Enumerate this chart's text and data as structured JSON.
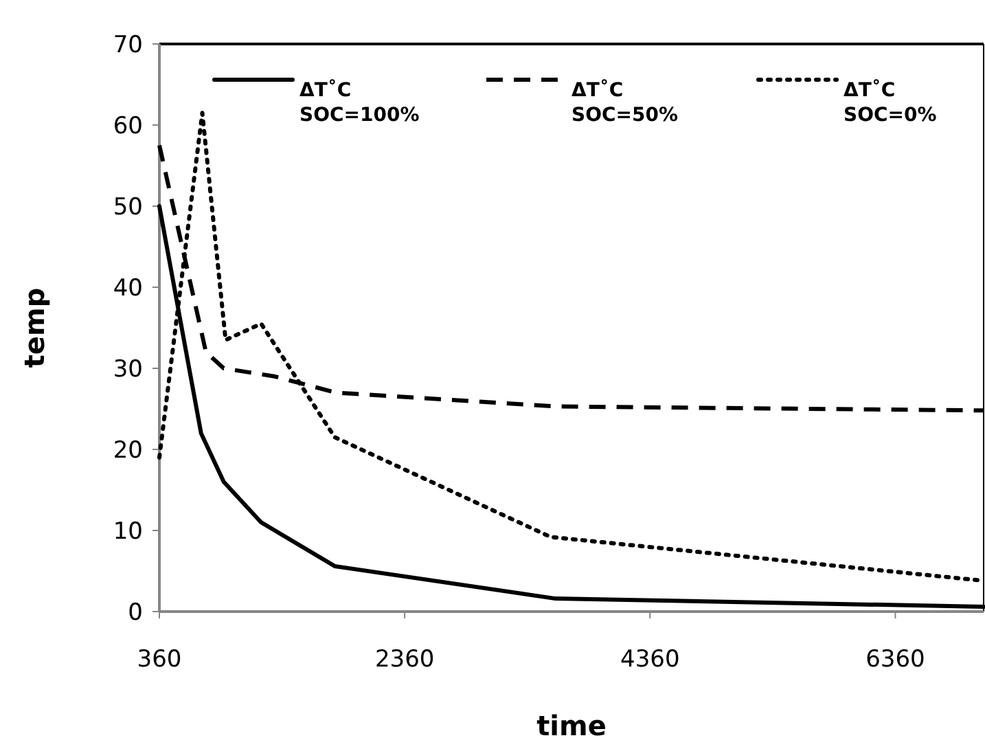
{
  "chart_data": {
    "type": "line",
    "xlabel": "time",
    "ylabel": "temp",
    "xlim": [
      360,
      7080
    ],
    "xticks": [
      360,
      2360,
      4360,
      6360
    ],
    "ylim": [
      0,
      70
    ],
    "yticks": [
      0,
      10,
      20,
      30,
      40,
      50,
      60,
      70
    ],
    "grid": false,
    "legend": "top",
    "marker": "none",
    "series": [
      {
        "name": "ΔT˚C SOC=100%",
        "color": "#000000",
        "line_style": "solid",
        "x": [
          360,
          700,
          885,
          1190,
          1790,
          3590,
          7080
        ],
        "values": [
          50,
          22,
          16,
          11,
          5.6,
          1.6,
          0.6
        ]
      },
      {
        "name": "ΔT˚C SOC=50%",
        "color": "#000000",
        "line_style": "dashed",
        "x": [
          360,
          740,
          885,
          1300,
          1800,
          3600,
          7080
        ],
        "values": [
          57.5,
          32,
          30,
          29,
          27,
          25.3,
          24.8
        ]
      },
      {
        "name": "ΔT˚C SOC=0%",
        "color": "#000000",
        "line_style": "dotted",
        "x": [
          360,
          710,
          900,
          1190,
          1790,
          3550,
          7080
        ],
        "values": [
          19,
          61.5,
          33.5,
          35.5,
          21.5,
          9.2,
          3.8
        ]
      }
    ]
  }
}
